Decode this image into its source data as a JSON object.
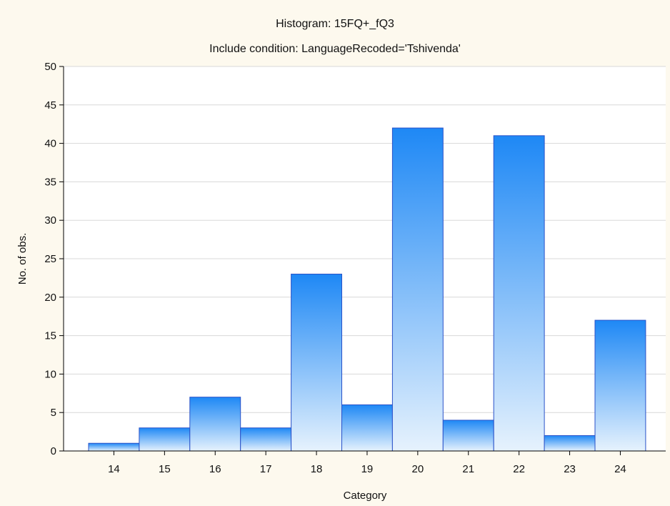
{
  "chart_data": {
    "type": "bar",
    "title": "Histogram: 15FQ+_fQ3",
    "subtitle": "Include condition: LanguageRecoded='Tshivenda'",
    "xlabel": "Category",
    "ylabel": "No. of obs.",
    "categories": [
      "14",
      "15",
      "16",
      "17",
      "18",
      "19",
      "20",
      "21",
      "22",
      "23",
      "24"
    ],
    "values": [
      1,
      3,
      7,
      3,
      23,
      6,
      42,
      4,
      41,
      2,
      17
    ],
    "ylim": [
      0,
      50
    ],
    "yticks": [
      "0",
      "5",
      "10",
      "15",
      "20",
      "25",
      "30",
      "35",
      "40",
      "45",
      "50"
    ],
    "grid": true,
    "legend": "none",
    "colors": {
      "background": "#fdf9ee",
      "plot_background": "#ffffff",
      "bar_top": "#1e88f5",
      "bar_bottom": "#e6f2fd",
      "bar_stroke": "#2a52c8",
      "grid": "#d8d8d8",
      "axis": "#000000"
    }
  }
}
